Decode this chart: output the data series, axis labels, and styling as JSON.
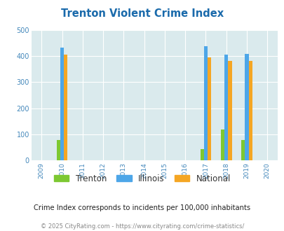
{
  "title": "Trenton Violent Crime Index",
  "subtitle": "Crime Index corresponds to incidents per 100,000 inhabitants",
  "footer": "© 2025 CityRating.com - https://www.cityrating.com/crime-statistics/",
  "years": [
    2009,
    2010,
    2011,
    2012,
    2013,
    2014,
    2015,
    2016,
    2017,
    2018,
    2019,
    2020
  ],
  "data": {
    "2010": {
      "trenton": 80,
      "illinois": 433,
      "national": 405
    },
    "2017": {
      "trenton": 43,
      "illinois": 437,
      "national": 394
    },
    "2018": {
      "trenton": 120,
      "illinois": 405,
      "national": 381
    },
    "2019": {
      "trenton": 80,
      "illinois": 408,
      "national": 381
    }
  },
  "ylim": [
    0,
    500
  ],
  "yticks": [
    0,
    100,
    200,
    300,
    400,
    500
  ],
  "colors": {
    "trenton": "#7dc832",
    "illinois": "#4da6e8",
    "national": "#f5a623"
  },
  "legend_labels": [
    "Trenton",
    "Illinois",
    "National"
  ],
  "bg_color": "#daeaed",
  "fig_bg": "#ffffff",
  "title_color": "#1a6aab",
  "subtitle_color": "#222222",
  "footer_color": "#888888",
  "bar_width": 0.18,
  "grid_color": "#ffffff",
  "axis_label_color": "#4488bb",
  "xlim": [
    2008.5,
    2020.5
  ]
}
